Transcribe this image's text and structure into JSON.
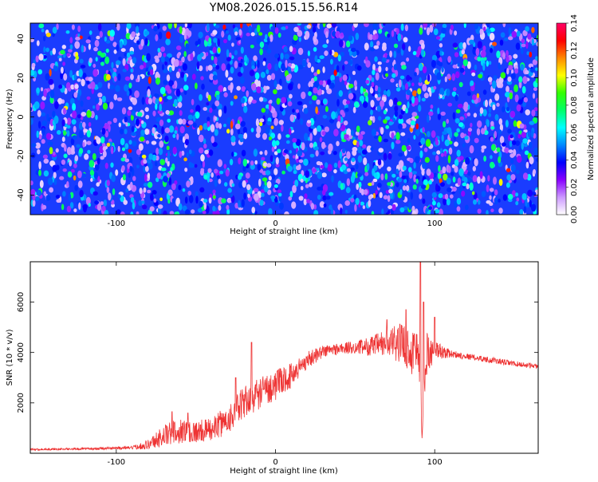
{
  "title": "YM08.2026.015.15.56.R14",
  "chart_data": [
    {
      "type": "heatmap",
      "title": "YM08.2026.015.15.56.R14",
      "xlabel": "Height of straight line (km)",
      "ylabel": "Frequency (Hz)",
      "xlim": [
        -154,
        165
      ],
      "ylim": [
        -50,
        48
      ],
      "xticks": [
        -100,
        0,
        100
      ],
      "yticks": [
        -40,
        -20,
        0,
        20,
        40
      ],
      "colorbar": {
        "label": "Normalized spectral amplitude",
        "range": [
          0.0,
          0.14
        ],
        "ticks": [
          "0.00",
          "0.02",
          "0.04",
          "0.06",
          "0.08",
          "0.10",
          "0.12",
          "0.14"
        ],
        "colors": [
          "#ffffff",
          "#cc99ff",
          "#8800ff",
          "#0000ff",
          "#0088ff",
          "#00ffff",
          "#00ff66",
          "#33ff00",
          "#ffff00",
          "#ff8800",
          "#ff0000",
          "#ff0066"
        ]
      },
      "background_value_typical": 0.03,
      "noise_description_values": {
        "dominant_range": [
          0.02,
          0.06
        ],
        "sparse_peaks": [
          0.08,
          0.12
        ]
      }
    },
    {
      "type": "line",
      "xlabel": "Height of straight line (km)",
      "ylabel": "SNR (10 * v/v)",
      "xlim": [
        -154,
        165
      ],
      "ylim": [
        0,
        7600
      ],
      "xticks": [
        -100,
        0,
        100
      ],
      "yticks": [
        2000,
        4000,
        6000
      ],
      "color": "#ee3333",
      "x": [
        -154,
        -130,
        -110,
        -90,
        -80,
        -70,
        -60,
        -50,
        -40,
        -30,
        -20,
        -10,
        0,
        10,
        20,
        30,
        40,
        50,
        60,
        70,
        80,
        85,
        90,
        92,
        95,
        100,
        110,
        120,
        130,
        140,
        150,
        165
      ],
      "y": [
        150,
        170,
        190,
        220,
        350,
        700,
        900,
        850,
        950,
        1350,
        2000,
        2400,
        2700,
        3100,
        3700,
        4050,
        4150,
        4200,
        4250,
        4350,
        4400,
        4000,
        4200,
        900,
        4000,
        4100,
        3950,
        3850,
        3750,
        3650,
        3550,
        3450
      ],
      "noise": [
        40,
        40,
        50,
        60,
        200,
        450,
        500,
        450,
        450,
        600,
        650,
        650,
        600,
        500,
        350,
        250,
        250,
        250,
        400,
        600,
        800,
        900,
        1100,
        700,
        900,
        400,
        150,
        120,
        120,
        120,
        110,
        100
      ],
      "spikes": [
        [
          -65,
          1650
        ],
        [
          -55,
          1600
        ],
        [
          -25,
          3000
        ],
        [
          -15,
          4400
        ],
        [
          70,
          5300
        ],
        [
          82,
          5700
        ],
        [
          91,
          7600
        ],
        [
          93,
          6000
        ],
        [
          100,
          5400
        ]
      ]
    }
  ]
}
